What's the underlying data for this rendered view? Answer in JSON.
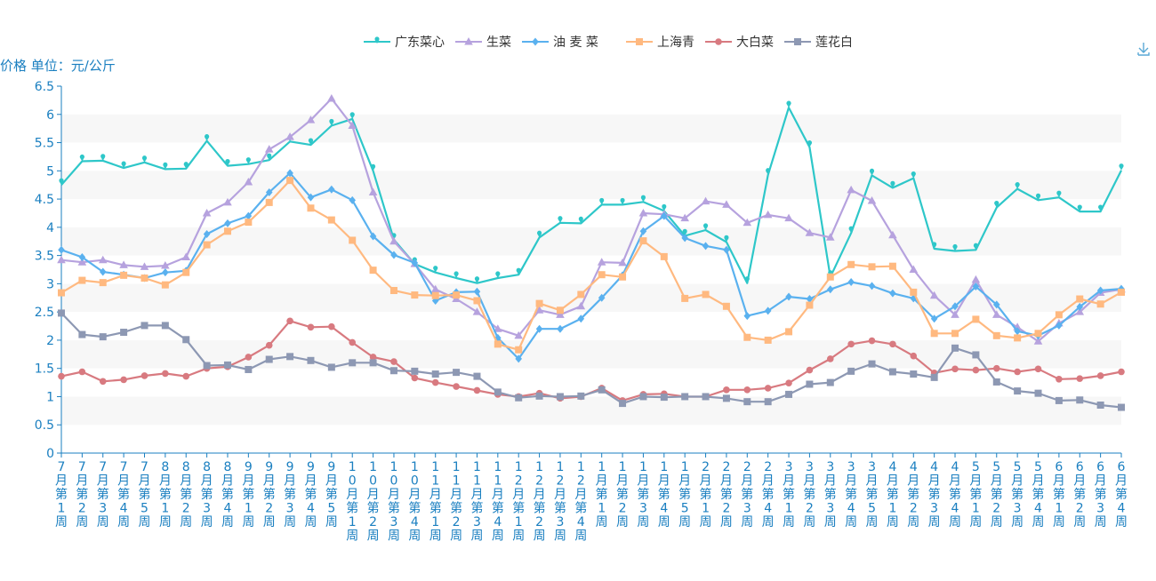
{
  "chart_data": {
    "type": "line",
    "ylabel": "价格 单位：元/公斤",
    "ylim": [
      0,
      6.5
    ],
    "yticks": [
      "0",
      "0.5",
      "1",
      "1.5",
      "2",
      "2.5",
      "3",
      "3.5",
      "4",
      "4.5",
      "5",
      "5.5",
      "6",
      "6.5"
    ],
    "legend_position": "top-center",
    "grid": "horizontal bands",
    "categories": [
      "7月第1周",
      "7月第2周",
      "7月第3周",
      "7月第4周",
      "7月第5周",
      "8月第1周",
      "8月第2周",
      "8月第3周",
      "8月第4周",
      "9月第1周",
      "9月第2周",
      "9月第3周",
      "9月第4周",
      "9月第5周",
      "10月第1周",
      "10月第2周",
      "10月第3周",
      "10月第4周",
      "11月第1周",
      "11月第2周",
      "11月第3周",
      "11月第4周",
      "12月第1周",
      "12月第2周",
      "12月第3周",
      "12月第4周",
      "1月第1周",
      "1月第2周",
      "1月第3周",
      "1月第4周",
      "1月第5周",
      "2月第1周",
      "2月第2周",
      "2月第3周",
      "2月第4周",
      "3月第1周",
      "3月第2周",
      "3月第3周",
      "3月第4周",
      "3月第5周",
      "4月第1周",
      "4月第2周",
      "4月第3周",
      "4月第4周",
      "5月第1周",
      "5月第2周",
      "5月第3周",
      "5月第4周",
      "6月第1周",
      "6月第2周",
      "6月第3周",
      "6月第4周"
    ],
    "series": [
      {
        "name": "广东菜心",
        "color": "#2ec7c9",
        "symbol": "pin",
        "values": [
          4.75,
          5.17,
          5.18,
          5.05,
          5.15,
          5.03,
          5.04,
          5.53,
          5.09,
          5.12,
          5.19,
          5.52,
          5.46,
          5.8,
          5.92,
          5.0,
          3.78,
          3.35,
          3.2,
          3.1,
          3.01,
          3.1,
          3.16,
          3.82,
          4.08,
          4.07,
          4.4,
          4.4,
          4.45,
          4.29,
          3.85,
          3.95,
          3.74,
          3.01,
          4.93,
          6.12,
          5.42,
          3.12,
          3.9,
          4.92,
          4.7,
          4.87,
          3.62,
          3.58,
          3.6,
          4.35,
          4.68,
          4.48,
          4.53,
          4.28,
          4.28,
          5.01
        ]
      },
      {
        "name": "生菜",
        "color": "#b6a2de",
        "symbol": "triangle",
        "values": [
          3.42,
          3.38,
          3.42,
          3.33,
          3.3,
          3.32,
          3.47,
          4.25,
          4.44,
          4.8,
          5.38,
          5.6,
          5.9,
          6.28,
          5.8,
          4.62,
          3.75,
          3.35,
          2.9,
          2.73,
          2.5,
          2.2,
          2.08,
          2.53,
          2.45,
          2.6,
          3.38,
          3.37,
          4.25,
          4.23,
          4.16,
          4.46,
          4.4,
          4.08,
          4.22,
          4.16,
          3.9,
          3.82,
          4.66,
          4.47,
          3.86,
          3.25,
          2.79,
          2.45,
          3.07,
          2.45,
          2.23,
          1.98,
          2.3,
          2.5,
          2.84,
          2.9
        ]
      },
      {
        "name": "油 麦 菜",
        "color": "#5ab1ef",
        "symbol": "diamond",
        "values": [
          3.6,
          3.47,
          3.21,
          3.16,
          3.1,
          3.2,
          3.23,
          3.88,
          4.07,
          4.2,
          4.62,
          4.96,
          4.53,
          4.67,
          4.48,
          3.84,
          3.51,
          3.37,
          2.7,
          2.85,
          2.86,
          2.04,
          1.67,
          2.2,
          2.2,
          2.38,
          2.75,
          3.15,
          3.93,
          4.2,
          3.81,
          3.67,
          3.6,
          2.43,
          2.52,
          2.77,
          2.73,
          2.9,
          3.03,
          2.96,
          2.83,
          2.74,
          2.38,
          2.6,
          2.95,
          2.63,
          2.16,
          2.08,
          2.26,
          2.59,
          2.88,
          2.91
        ]
      },
      {
        "name": "上海青",
        "color": "#ffb980",
        "symbol": "square",
        "values": [
          2.84,
          3.06,
          3.02,
          3.15,
          3.1,
          2.98,
          3.2,
          3.69,
          3.93,
          4.09,
          4.44,
          4.83,
          4.34,
          4.13,
          3.77,
          3.24,
          2.88,
          2.8,
          2.79,
          2.8,
          2.7,
          1.93,
          1.83,
          2.65,
          2.53,
          2.81,
          3.16,
          3.12,
          3.76,
          3.48,
          2.74,
          2.81,
          2.6,
          2.05,
          2.0,
          2.15,
          2.62,
          3.12,
          3.34,
          3.3,
          3.31,
          2.85,
          2.12,
          2.12,
          2.37,
          2.08,
          2.04,
          2.12,
          2.45,
          2.73,
          2.64,
          2.85
        ]
      },
      {
        "name": "大白菜",
        "color": "#d87a80",
        "symbol": "circle",
        "values": [
          1.36,
          1.44,
          1.27,
          1.3,
          1.37,
          1.41,
          1.36,
          1.5,
          1.53,
          1.7,
          1.91,
          2.34,
          2.23,
          2.24,
          1.96,
          1.7,
          1.62,
          1.33,
          1.25,
          1.18,
          1.11,
          1.04,
          1.0,
          1.06,
          0.97,
          1.0,
          1.15,
          0.93,
          1.04,
          1.05,
          1.0,
          1.0,
          1.12,
          1.12,
          1.15,
          1.24,
          1.47,
          1.67,
          1.93,
          1.99,
          1.93,
          1.72,
          1.42,
          1.49,
          1.47,
          1.5,
          1.44,
          1.49,
          1.31,
          1.32,
          1.37,
          1.44
        ]
      },
      {
        "name": "莲花白",
        "color": "#8d98b3",
        "symbol": "square",
        "values": [
          2.48,
          2.1,
          2.06,
          2.14,
          2.26,
          2.26,
          2.01,
          1.55,
          1.56,
          1.48,
          1.66,
          1.71,
          1.64,
          1.52,
          1.6,
          1.6,
          1.46,
          1.45,
          1.4,
          1.43,
          1.36,
          1.08,
          0.98,
          1.01,
          1.0,
          1.01,
          1.12,
          0.88,
          1.0,
          0.99,
          1.0,
          1.0,
          0.97,
          0.91,
          0.91,
          1.04,
          1.22,
          1.25,
          1.45,
          1.58,
          1.44,
          1.4,
          1.34,
          1.86,
          1.74,
          1.26,
          1.1,
          1.06,
          0.93,
          0.94,
          0.85,
          0.81
        ]
      }
    ]
  },
  "toolbar": {
    "save_icon": "download-icon"
  }
}
